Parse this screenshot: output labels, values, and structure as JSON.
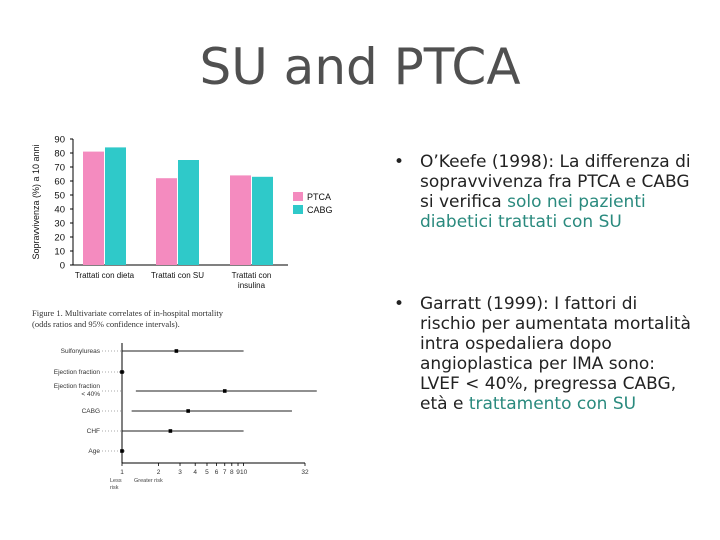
{
  "slide": {
    "title": "SU and PTCA"
  },
  "bullets": [
    {
      "marker": "•",
      "text_a": "O’Keefe (1998): La differenza di sopravvivenza fra PTCA e CABG si verifica ",
      "text_hl": "solo nei pazienti diabetici trattati con SU",
      "text_b": ""
    },
    {
      "marker": "•",
      "text_a": "Garratt (1999): I fattori di rischio per aumentata mortalità intra ospedaliera dopo angioplastica per IMA sono: LVEF < 40%, pregressa CABG, età e ",
      "text_hl": "trattamento con SU",
      "text_b": ""
    }
  ],
  "colors": {
    "ptca": "#f48bbf",
    "cabg": "#2fc9c9",
    "highlight": "#2a8a7e"
  },
  "chart_data": [
    {
      "type": "bar",
      "title": "",
      "ylabel": "Sopravvivenza (%) a 10 anni",
      "ylim": [
        0,
        90
      ],
      "yticks": [
        "0",
        "10",
        "20",
        "30",
        "40",
        "50",
        "60",
        "70",
        "80",
        "90"
      ],
      "categories": [
        "Trattati con dieta",
        "Trattati con SU",
        "Trattati con insulina"
      ],
      "series": [
        {
          "name": "PTCA",
          "values": [
            81,
            62,
            64
          ]
        },
        {
          "name": "CABG",
          "values": [
            84,
            75,
            63
          ]
        }
      ],
      "legend_position": "right"
    },
    {
      "type": "scatter",
      "title": "Figure 1. Multivariate correlates of in-hospital mortality (odds ratios and 95% confidence intervals).",
      "categories": [
        "Sulfonylureas",
        "Ejection fraction",
        "Ejection fraction < 40%",
        "CABG",
        "CHF",
        "Age"
      ],
      "odds_ratios": [
        2.8,
        1.0,
        7.0,
        3.5,
        2.5,
        1.0
      ],
      "ci_low": [
        1.0,
        0.95,
        1.3,
        1.2,
        1.0,
        1.0
      ],
      "ci_high": [
        10.0,
        1.05,
        40.0,
        25.0,
        10.0,
        1.05
      ],
      "xscale": "log",
      "xticks": [
        "1",
        "2",
        "3",
        "4",
        "5",
        "6",
        "7",
        "8",
        "9",
        "10",
        "32"
      ],
      "xlabel_left": "Less risk",
      "xlabel_right": "Greater risk"
    }
  ]
}
